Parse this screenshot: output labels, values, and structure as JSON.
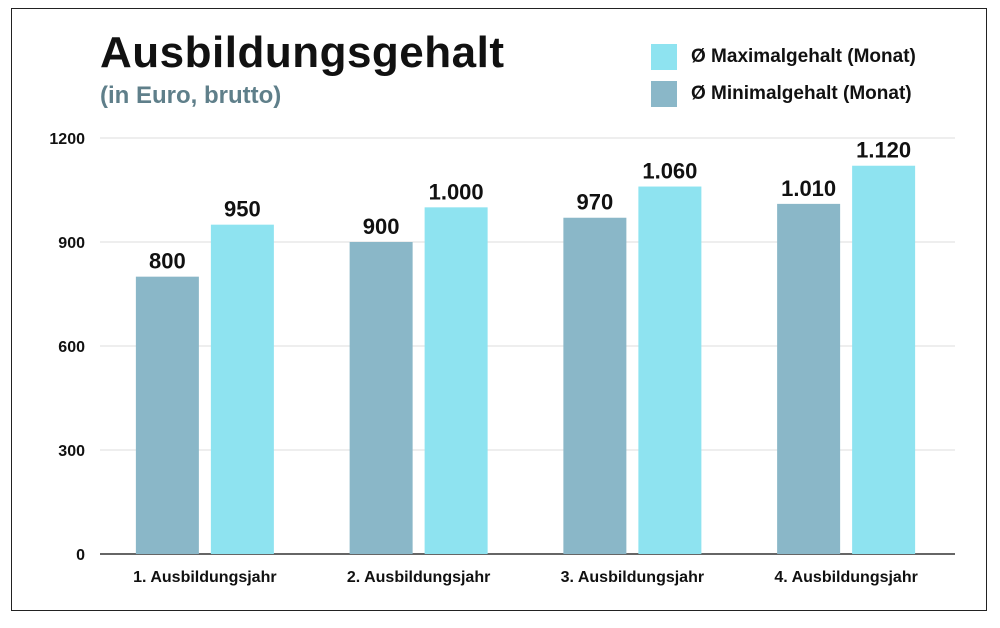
{
  "chart_data": {
    "type": "bar",
    "title": "Ausbildungsgehalt",
    "subtitle": "(in Euro, brutto)",
    "categories": [
      "1. Ausbildungsjahr",
      "2. Ausbildungsjahr",
      "3. Ausbildungsjahr",
      "4. Ausbildungsjahr"
    ],
    "series": [
      {
        "name": "Ø Minimalgehalt (Monat)",
        "color": "#8ab7c8",
        "values": [
          800,
          900,
          970,
          1010
        ],
        "labels": [
          "800",
          "900",
          "970",
          "1.010"
        ]
      },
      {
        "name": "Ø Maximalgehalt (Monat)",
        "color": "#8ee3f0",
        "values": [
          950,
          1000,
          1060,
          1120
        ],
        "labels": [
          "950",
          "1.000",
          "1.060",
          "1.120"
        ]
      }
    ],
    "yticks": [
      0,
      300,
      600,
      900,
      1200
    ],
    "ylim": [
      0,
      1200
    ],
    "grid": true,
    "legend_position": "top-right",
    "legend_order": [
      1,
      0
    ]
  }
}
